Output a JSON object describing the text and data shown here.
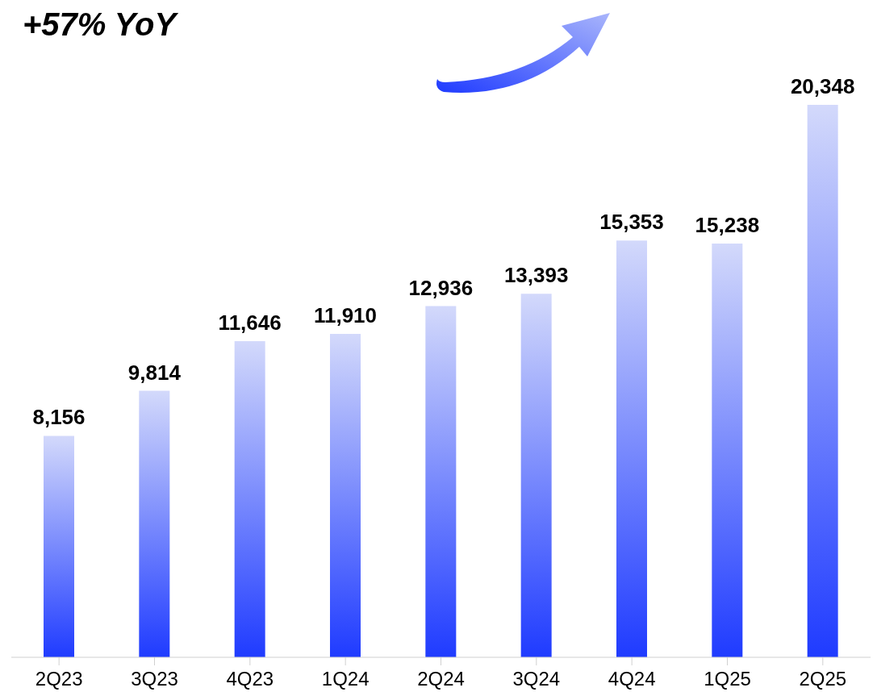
{
  "chart_data": {
    "type": "bar",
    "title": "+57% YoY",
    "categories": [
      "2Q23",
      "3Q23",
      "4Q23",
      "1Q24",
      "2Q24",
      "3Q24",
      "4Q24",
      "1Q25",
      "2Q25"
    ],
    "values": [
      8156,
      9814,
      11646,
      11910,
      12936,
      13393,
      15353,
      15238,
      20348
    ],
    "value_labels": [
      "8,156",
      "9,814",
      "11,646",
      "11,910",
      "12,936",
      "13,393",
      "15,353",
      "15,238",
      "20,348"
    ],
    "color": "#1f3bff",
    "grid": false,
    "legend": false
  }
}
